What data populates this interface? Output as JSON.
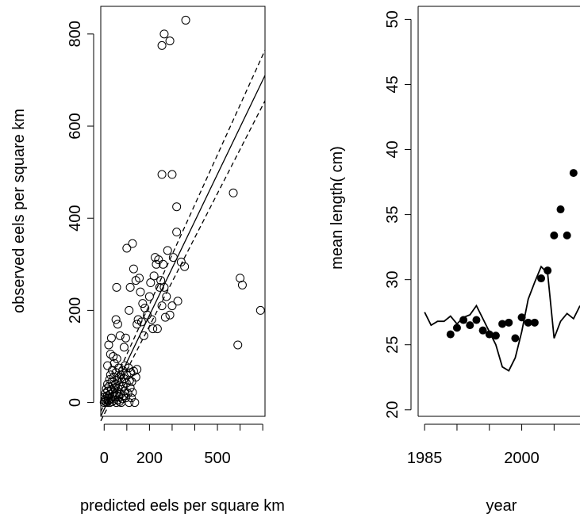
{
  "chart_data": [
    {
      "type": "scatter",
      "xlabel": "predicted eels per square km",
      "ylabel": "observed eels per square km",
      "xlim": [
        -15,
        710
      ],
      "ylim": [
        -30,
        860
      ],
      "x_ticks": [
        0,
        200,
        500
      ],
      "x_tick_labels": [
        "0",
        "200",
        "500"
      ],
      "x_minor_ticks": [
        0,
        100,
        200,
        300,
        400,
        500,
        600,
        700
      ],
      "y_ticks": [
        0,
        200,
        400,
        600,
        800
      ],
      "y_tick_labels": [
        "0",
        "200",
        "400",
        "600",
        "800"
      ],
      "points": [
        [
          0,
          0
        ],
        [
          2,
          5
        ],
        [
          3,
          12
        ],
        [
          5,
          2
        ],
        [
          6,
          20
        ],
        [
          8,
          8
        ],
        [
          10,
          30
        ],
        [
          12,
          0
        ],
        [
          14,
          15
        ],
        [
          15,
          40
        ],
        [
          16,
          25
        ],
        [
          18,
          4
        ],
        [
          20,
          10
        ],
        [
          22,
          35
        ],
        [
          24,
          50
        ],
        [
          25,
          0
        ],
        [
          26,
          18
        ],
        [
          28,
          60
        ],
        [
          30,
          8
        ],
        [
          32,
          28
        ],
        [
          34,
          45
        ],
        [
          35,
          2
        ],
        [
          36,
          70
        ],
        [
          38,
          14
        ],
        [
          40,
          22
        ],
        [
          42,
          55
        ],
        [
          44,
          5
        ],
        [
          45,
          85
        ],
        [
          46,
          32
        ],
        [
          48,
          12
        ],
        [
          50,
          40
        ],
        [
          52,
          65
        ],
        [
          54,
          0
        ],
        [
          55,
          20
        ],
        [
          56,
          95
        ],
        [
          58,
          48
        ],
        [
          60,
          6
        ],
        [
          62,
          30
        ],
        [
          64,
          75
        ],
        [
          65,
          12
        ],
        [
          66,
          55
        ],
        [
          68,
          2
        ],
        [
          70,
          38
        ],
        [
          72,
          18
        ],
        [
          74,
          60
        ],
        [
          75,
          0
        ],
        [
          76,
          28
        ],
        [
          78,
          45
        ],
        [
          80,
          8
        ],
        [
          82,
          70
        ],
        [
          84,
          35
        ],
        [
          85,
          15
        ],
        [
          88,
          52
        ],
        [
          90,
          25
        ],
        [
          92,
          80
        ],
        [
          95,
          10
        ],
        [
          98,
          42
        ],
        [
          100,
          60
        ],
        [
          105,
          20
        ],
        [
          108,
          75
        ],
        [
          110,
          0
        ],
        [
          112,
          48
        ],
        [
          115,
          32
        ],
        [
          118,
          65
        ],
        [
          120,
          10
        ],
        [
          122,
          45
        ],
        [
          125,
          22
        ],
        [
          130,
          68
        ],
        [
          135,
          0
        ],
        [
          140,
          55
        ],
        [
          145,
          72
        ],
        [
          15,
          80
        ],
        [
          20,
          125
        ],
        [
          28,
          105
        ],
        [
          32,
          140
        ],
        [
          40,
          100
        ],
        [
          52,
          180
        ],
        [
          55,
          250
        ],
        [
          60,
          170
        ],
        [
          70,
          145
        ],
        [
          88,
          120
        ],
        [
          95,
          140
        ],
        [
          100,
          335
        ],
        [
          110,
          200
        ],
        [
          115,
          250
        ],
        [
          125,
          345
        ],
        [
          130,
          290
        ],
        [
          140,
          265
        ],
        [
          145,
          170
        ],
        [
          150,
          180
        ],
        [
          155,
          270
        ],
        [
          160,
          240
        ],
        [
          165,
          175
        ],
        [
          170,
          215
        ],
        [
          175,
          145
        ],
        [
          180,
          205
        ],
        [
          190,
          190
        ],
        [
          200,
          230
        ],
        [
          205,
          260
        ],
        [
          210,
          180
        ],
        [
          215,
          160
        ],
        [
          220,
          275
        ],
        [
          225,
          315
        ],
        [
          230,
          300
        ],
        [
          235,
          160
        ],
        [
          240,
          310
        ],
        [
          245,
          250
        ],
        [
          250,
          265
        ],
        [
          255,
          210
        ],
        [
          260,
          300
        ],
        [
          265,
          250
        ],
        [
          270,
          185
        ],
        [
          275,
          230
        ],
        [
          280,
          330
        ],
        [
          290,
          190
        ],
        [
          300,
          210
        ],
        [
          305,
          315
        ],
        [
          320,
          370
        ],
        [
          325,
          220
        ],
        [
          340,
          305
        ],
        [
          355,
          295
        ],
        [
          255,
          495
        ],
        [
          300,
          495
        ],
        [
          320,
          425
        ],
        [
          255,
          775
        ],
        [
          265,
          800
        ],
        [
          290,
          785
        ],
        [
          360,
          830
        ],
        [
          570,
          455
        ],
        [
          600,
          270
        ],
        [
          610,
          255
        ],
        [
          590,
          125
        ],
        [
          690,
          200
        ]
      ],
      "fit_line": {
        "x": [
          -15,
          710
        ],
        "y": [
          -30,
          710
        ]
      },
      "ci_upper": {
        "x": [
          -15,
          710
        ],
        "y": [
          -20,
          765
        ]
      },
      "ci_lower": {
        "x": [
          -15,
          710
        ],
        "y": [
          -40,
          655
        ]
      }
    },
    {
      "type": "line",
      "xlabel": "year",
      "ylabel": "mean length( cm)",
      "xlim": [
        1984,
        2009
      ],
      "ylim": [
        19.5,
        51
      ],
      "x_ticks": [
        1985,
        2000
      ],
      "x_tick_labels": [
        "1985",
        "2000"
      ],
      "x_minor_ticks": [
        1985,
        1990,
        1995,
        2000,
        2005
      ],
      "y_ticks": [
        20,
        25,
        30,
        35,
        40,
        45,
        50
      ],
      "y_tick_labels": [
        "20",
        "25",
        "30",
        "35",
        "40",
        "45",
        "50"
      ],
      "line": {
        "x": [
          1985,
          1986,
          1987,
          1988,
          1989,
          1990,
          1991,
          1992,
          1993,
          1994,
          1995,
          1996,
          1997,
          1998,
          1999,
          2000,
          2001,
          2002,
          2003,
          2004,
          2005,
          2006,
          2007,
          2008,
          2009
        ],
        "y": [
          27.5,
          26.5,
          26.8,
          26.8,
          27.2,
          26.6,
          27.1,
          27.3,
          28.0,
          27.0,
          26.0,
          25.0,
          23.3,
          23.0,
          24.0,
          26.0,
          28.5,
          29.8,
          31.0,
          30.5,
          25.5,
          26.8,
          27.4,
          27.0,
          28.0
        ]
      },
      "points": {
        "x": [
          1989,
          1990,
          1991,
          1992,
          1993,
          1994,
          1995,
          1996,
          1997,
          1998,
          1999,
          2000,
          2001,
          2002,
          2003,
          2004,
          2005,
          2006,
          2007,
          2008
        ],
        "y": [
          25.8,
          26.3,
          26.9,
          26.5,
          26.9,
          26.1,
          25.8,
          25.7,
          26.6,
          26.7,
          25.5,
          27.1,
          26.7,
          26.7,
          30.1,
          30.7,
          33.4,
          35.4,
          33.4,
          38.2
        ]
      }
    }
  ]
}
